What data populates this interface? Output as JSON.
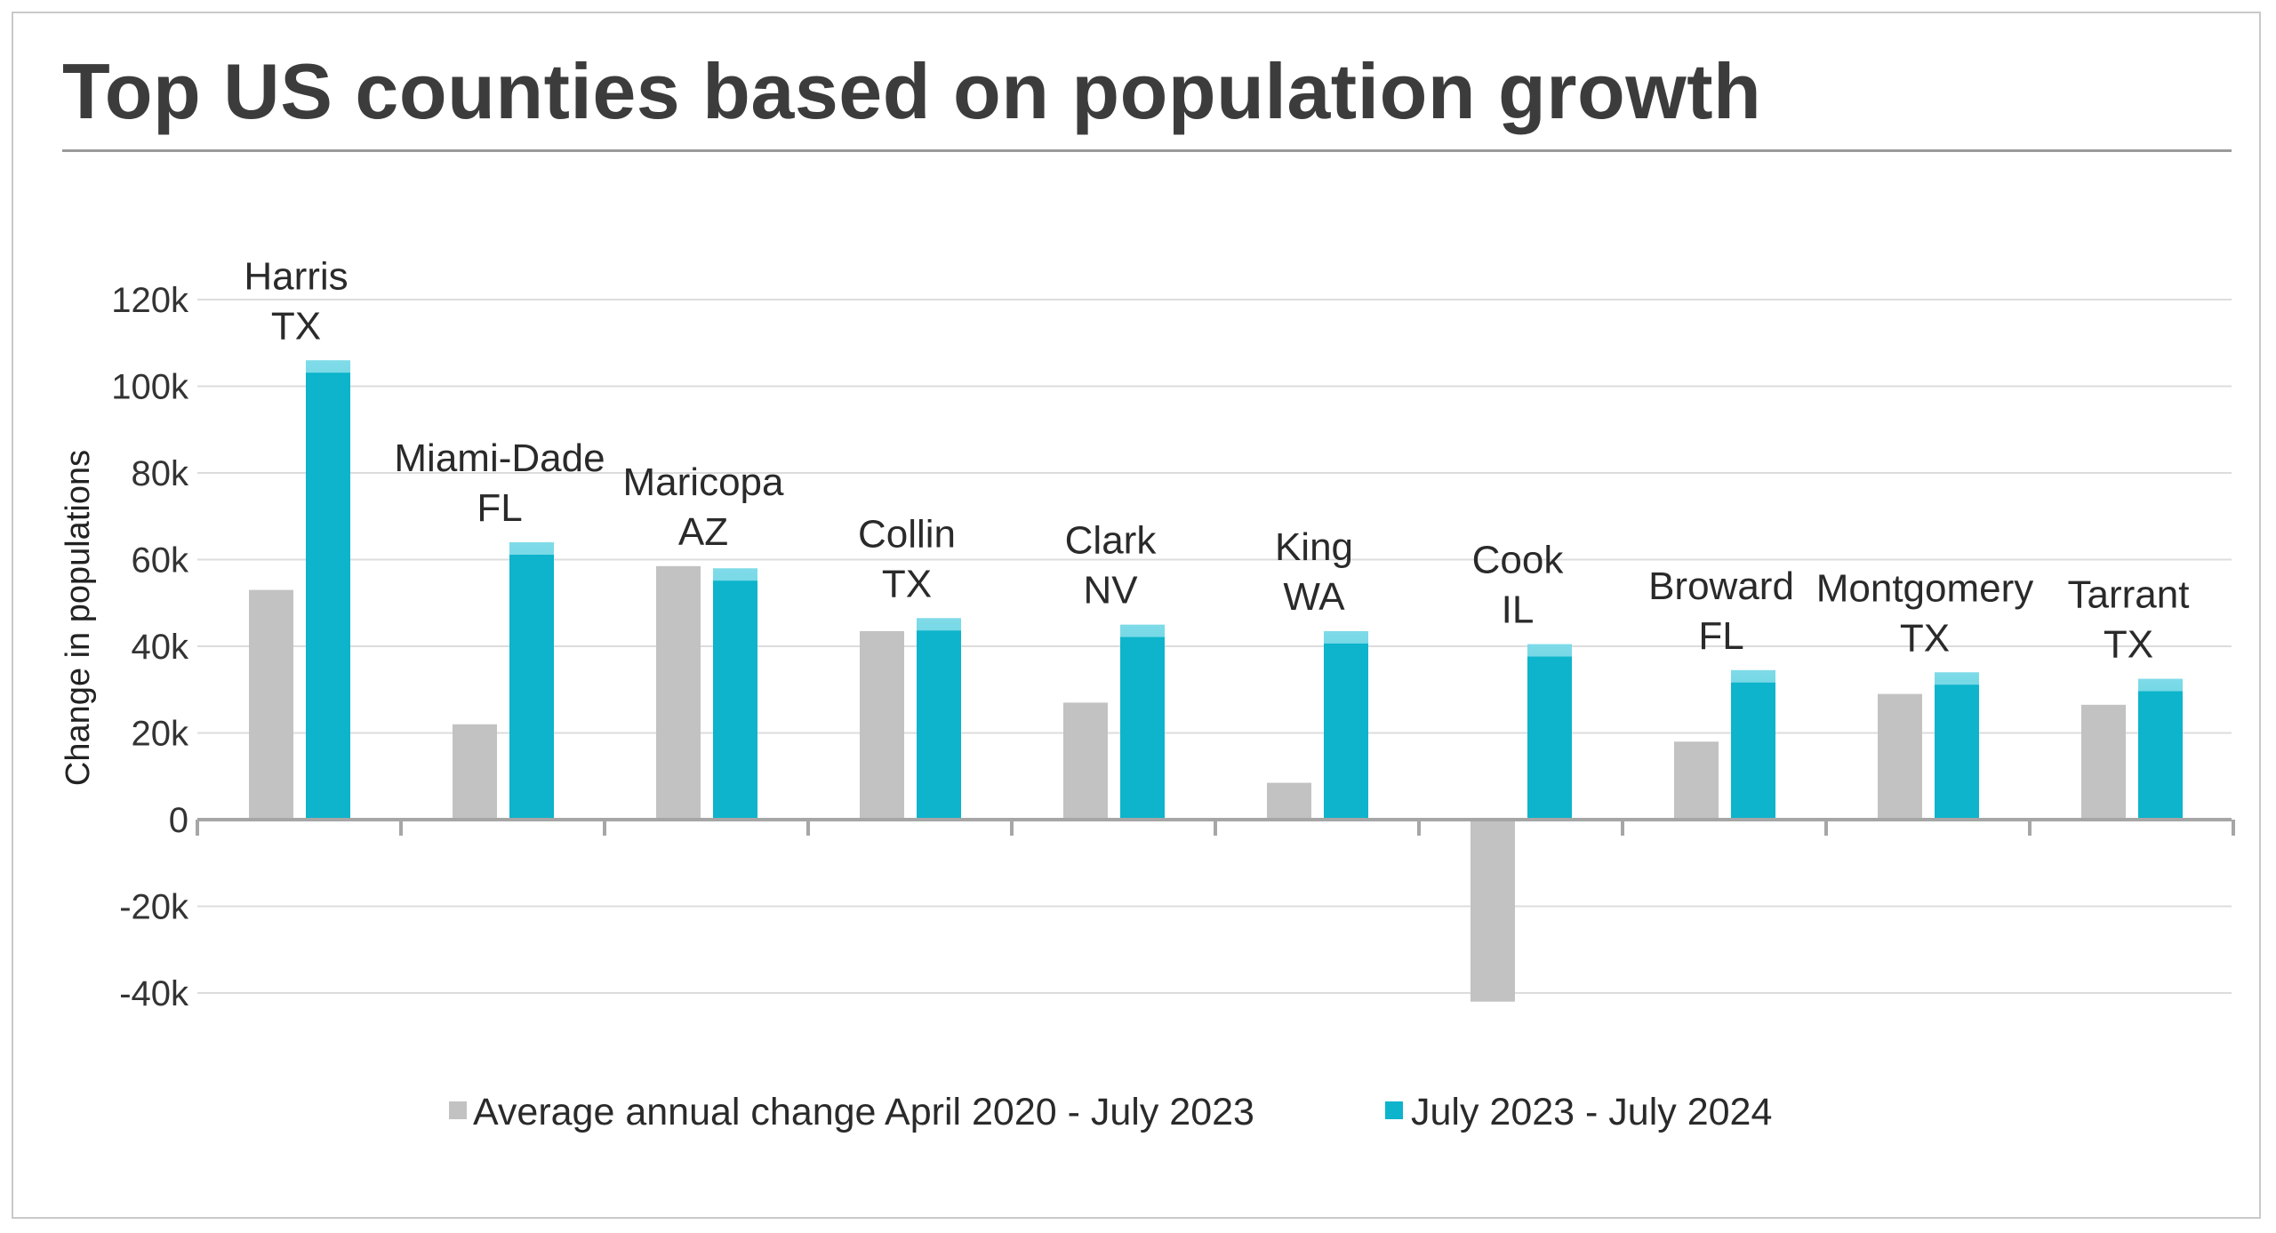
{
  "chart_data": {
    "type": "bar",
    "title": "Top US counties based on population growth",
    "xlabel": "",
    "ylabel": "Change in populations",
    "ylim": [
      -40000,
      120000
    ],
    "yticks": [
      120000,
      100000,
      80000,
      60000,
      40000,
      20000,
      0,
      -20000,
      -40000
    ],
    "ytick_labels": [
      "120k",
      "100k",
      "80k",
      "60k",
      "40k",
      "20k",
      "0",
      "-20k",
      "-40k"
    ],
    "grid": true,
    "legend_position": "bottom",
    "categories": [
      {
        "name": "Harris",
        "state": "TX"
      },
      {
        "name": "Miami-Dade",
        "state": "FL"
      },
      {
        "name": "Maricopa",
        "state": "AZ"
      },
      {
        "name": "Collin",
        "state": "TX"
      },
      {
        "name": "Clark",
        "state": "NV"
      },
      {
        "name": "King",
        "state": "WA"
      },
      {
        "name": "Cook",
        "state": "IL"
      },
      {
        "name": "Broward",
        "state": "FL"
      },
      {
        "name": "Montgomery",
        "state": "TX"
      },
      {
        "name": "Tarrant",
        "state": "TX"
      }
    ],
    "series": [
      {
        "name": "Average annual change April 2020 - July 2023",
        "color": "#c2c2c2",
        "values": [
          53000,
          22000,
          58500,
          43500,
          27000,
          8500,
          -42000,
          18000,
          29000,
          26500
        ]
      },
      {
        "name": "July 2023 - July 2024",
        "color": "#0db4cb",
        "values": [
          106000,
          64000,
          58000,
          46500,
          45000,
          43500,
          40500,
          34500,
          34000,
          32500
        ]
      }
    ]
  }
}
